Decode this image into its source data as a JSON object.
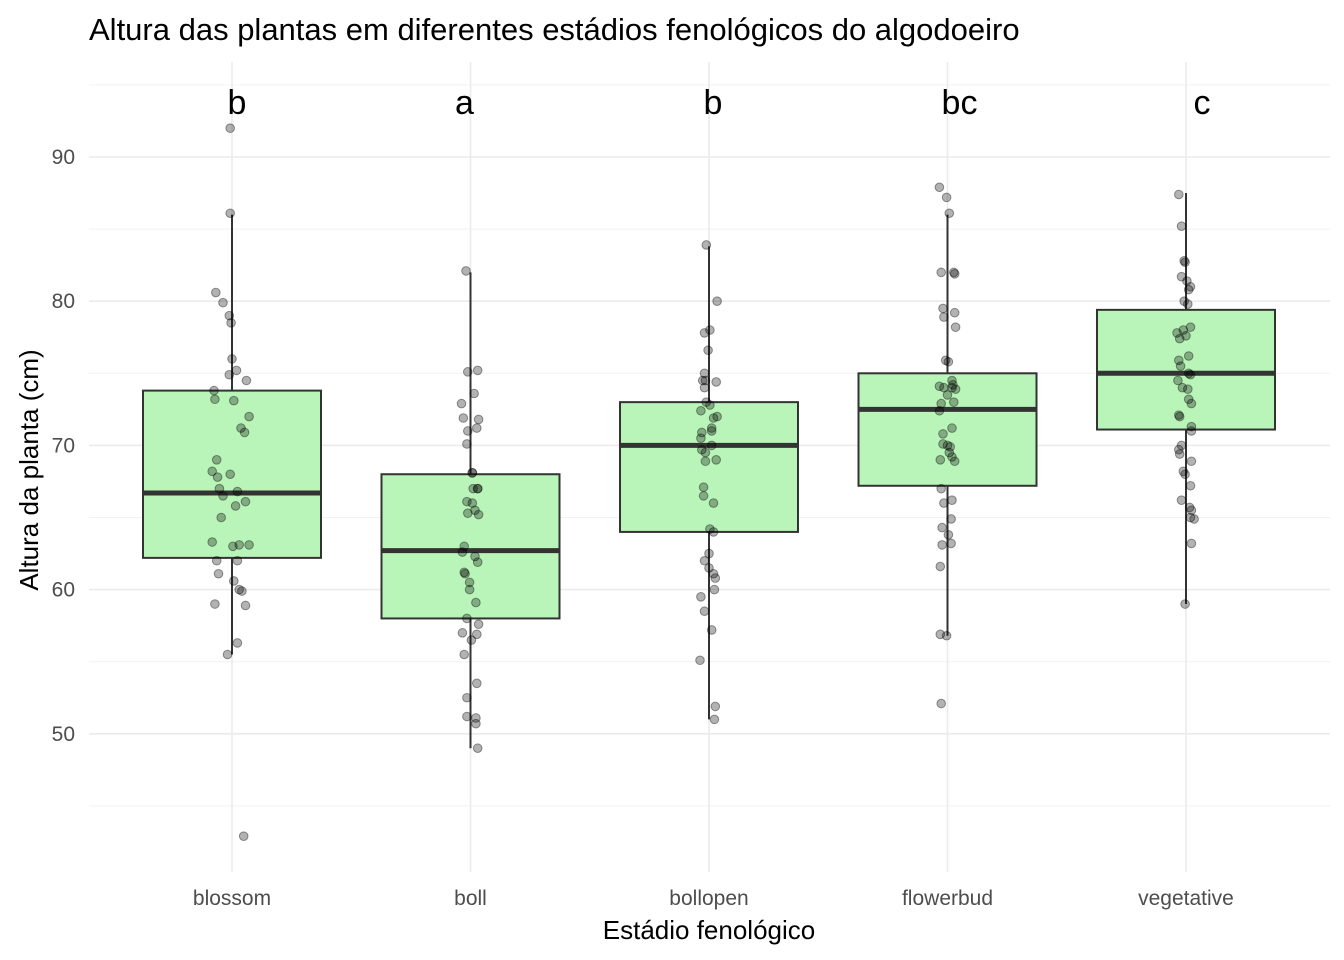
{
  "chart_data": {
    "type": "boxplot",
    "title": "Altura das plantas em diferentes estádios fenológicos do algodoeiro",
    "xlabel": "Estádio fenológico",
    "ylabel": "Altura da planta (cm)",
    "ylim": [
      40.5,
      96
    ],
    "yticks": [
      50,
      60,
      70,
      80,
      90
    ],
    "grid": true,
    "colors": {
      "box_fill": "#b9f5b9",
      "box_stroke": "#333333",
      "point": "#000000"
    },
    "categories": [
      "blossom",
      "boll",
      "bollopen",
      "flowerbud",
      "vegetative"
    ],
    "boxes": [
      {
        "name": "blossom",
        "letter": "b",
        "q1": 62.2,
        "median": 66.7,
        "q3": 73.8,
        "whisker_low": 55.5,
        "whisker_high": 86.0,
        "points": [
          92.0,
          86.1,
          80.6,
          79.9,
          79.0,
          78.5,
          76.0,
          75.2,
          74.9,
          74.5,
          73.8,
          73.2,
          73.1,
          72.0,
          71.2,
          70.9,
          69.0,
          68.2,
          68.0,
          67.8,
          67.0,
          66.8,
          66.5,
          66.1,
          65.8,
          65.0,
          63.3,
          63.1,
          63.1,
          63.0,
          62.0,
          62.0,
          61.1,
          60.6,
          60.0,
          59.9,
          59.0,
          58.9,
          56.3,
          55.5,
          42.9
        ],
        "jitter": [
          -0.02,
          -0.02,
          -0.18,
          -0.1,
          -0.03,
          -0.01,
          0.0,
          0.05,
          -0.03,
          0.16,
          -0.2,
          -0.19,
          0.02,
          0.19,
          0.1,
          0.14,
          -0.17,
          -0.22,
          -0.02,
          -0.16,
          -0.14,
          0.06,
          -0.1,
          0.15,
          0.04,
          -0.12,
          -0.22,
          0.08,
          0.19,
          0.01,
          0.06,
          -0.17,
          -0.15,
          0.02,
          0.08,
          0.11,
          -0.19,
          0.15,
          0.06,
          -0.05,
          0.13
        ]
      },
      {
        "name": "boll",
        "letter": "a",
        "q1": 58.0,
        "median": 62.7,
        "q3": 68.0,
        "whisker_low": 49.0,
        "whisker_high": 82.0,
        "points": [
          82.1,
          75.2,
          75.1,
          73.6,
          72.9,
          71.9,
          71.8,
          71.2,
          71.0,
          70.1,
          68.1,
          68.1,
          67.0,
          67.0,
          67.0,
          66.1,
          66.0,
          65.5,
          65.3,
          65.2,
          63.0,
          62.6,
          62.3,
          61.9,
          61.2,
          61.1,
          60.5,
          60.0,
          59.1,
          58.0,
          57.6,
          57.0,
          56.9,
          56.5,
          55.5,
          53.5,
          52.5,
          51.2,
          51.1,
          50.7,
          49.0
        ],
        "jitter": [
          -0.05,
          0.08,
          -0.03,
          0.04,
          -0.1,
          -0.08,
          0.09,
          0.07,
          -0.03,
          -0.04,
          0.02,
          0.02,
          0.03,
          0.08,
          0.08,
          -0.04,
          0.02,
          0.05,
          -0.03,
          0.09,
          -0.07,
          -0.09,
          0.05,
          0.08,
          -0.07,
          -0.06,
          -0.01,
          -0.01,
          0.06,
          -0.04,
          0.09,
          -0.09,
          0.07,
          0.01,
          -0.07,
          0.07,
          -0.04,
          -0.04,
          0.06,
          0.06,
          0.08
        ]
      },
      {
        "name": "bollopen",
        "letter": "b",
        "q1": 64.0,
        "median": 70.0,
        "q3": 73.0,
        "whisker_low": 51.0,
        "whisker_high": 83.8,
        "points": [
          83.9,
          80.0,
          78.0,
          77.8,
          76.6,
          75.0,
          74.5,
          74.5,
          74.4,
          74.0,
          73.0,
          72.8,
          72.4,
          72.0,
          71.9,
          71.2,
          71.0,
          70.9,
          70.5,
          70.0,
          69.7,
          69.5,
          69.0,
          68.9,
          67.1,
          66.5,
          66.0,
          64.2,
          64.0,
          62.5,
          62.0,
          61.5,
          61.1,
          60.8,
          60.0,
          59.5,
          58.5,
          57.2,
          55.1,
          51.9,
          51.0
        ],
        "jitter": [
          -0.03,
          0.09,
          0.01,
          -0.05,
          -0.01,
          -0.05,
          -0.07,
          -0.04,
          0.08,
          -0.05,
          -0.03,
          0.01,
          -0.09,
          0.09,
          0.05,
          0.03,
          0.03,
          -0.08,
          -0.09,
          0.03,
          -0.08,
          -0.04,
          0.08,
          -0.04,
          -0.06,
          -0.06,
          0.05,
          0.01,
          0.05,
          0.0,
          -0.05,
          0.0,
          0.05,
          0.07,
          0.06,
          -0.09,
          -0.05,
          0.03,
          -0.1,
          0.07,
          0.06
        ]
      },
      {
        "name": "flowerbud",
        "letter": "bc",
        "q1": 67.2,
        "median": 72.5,
        "q3": 75.0,
        "whisker_low": 56.8,
        "whisker_high": 86.0,
        "points": [
          87.9,
          87.2,
          86.1,
          82.0,
          82.0,
          81.9,
          79.5,
          79.2,
          78.9,
          78.2,
          75.9,
          75.8,
          74.5,
          74.2,
          74.1,
          74.0,
          74.0,
          73.9,
          73.5,
          73.0,
          72.9,
          72.4,
          71.2,
          70.8,
          70.1,
          70.0,
          69.9,
          69.5,
          69.2,
          69.0,
          68.9,
          67.0,
          66.2,
          66.0,
          64.9,
          64.3,
          63.8,
          63.2,
          63.1,
          61.6,
          56.9,
          56.8,
          52.1
        ],
        "jitter": [
          -0.09,
          -0.01,
          0.02,
          -0.07,
          0.07,
          0.08,
          -0.05,
          0.08,
          -0.04,
          0.09,
          -0.02,
          0.01,
          0.05,
          0.06,
          -0.09,
          -0.04,
          0.05,
          0.09,
          0.0,
          0.07,
          -0.07,
          -0.09,
          0.05,
          -0.05,
          -0.05,
          0.0,
          0.03,
          0.02,
          0.05,
          -0.08,
          0.08,
          -0.07,
          0.05,
          -0.04,
          0.04,
          -0.06,
          0.01,
          0.04,
          -0.06,
          -0.08,
          -0.08,
          -0.01,
          -0.07
        ],
        "jitter_scale": 1
      },
      {
        "name": "vegetative",
        "letter": "c",
        "q1": 71.1,
        "median": 75.0,
        "q3": 79.4,
        "whisker_low": 59.0,
        "whisker_high": 87.5,
        "points": [
          87.4,
          85.2,
          82.8,
          82.7,
          81.7,
          81.4,
          81.0,
          80.8,
          80.0,
          79.8,
          78.2,
          78.0,
          77.8,
          77.6,
          77.4,
          76.2,
          75.9,
          75.5,
          75.0,
          74.9,
          74.5,
          74.0,
          73.9,
          73.2,
          72.9,
          72.1,
          72.0,
          71.3,
          71.0,
          70.0,
          69.7,
          69.4,
          68.9,
          68.2,
          68.0,
          67.2,
          66.2,
          65.7,
          65.5,
          65.0,
          64.9,
          63.2,
          59.0
        ],
        "jitter": [
          -0.08,
          -0.05,
          -0.02,
          -0.01,
          -0.05,
          0.01,
          0.05,
          0.03,
          -0.02,
          0.02,
          0.05,
          -0.03,
          -0.1,
          0.0,
          -0.07,
          0.03,
          -0.08,
          -0.06,
          0.03,
          0.05,
          -0.09,
          -0.04,
          0.02,
          0.03,
          0.06,
          -0.08,
          -0.07,
          0.06,
          0.06,
          -0.05,
          -0.08,
          -0.07,
          0.06,
          -0.03,
          -0.01,
          0.05,
          -0.05,
          0.04,
          0.06,
          0.05,
          0.09,
          0.06,
          -0.01
        ]
      }
    ]
  }
}
